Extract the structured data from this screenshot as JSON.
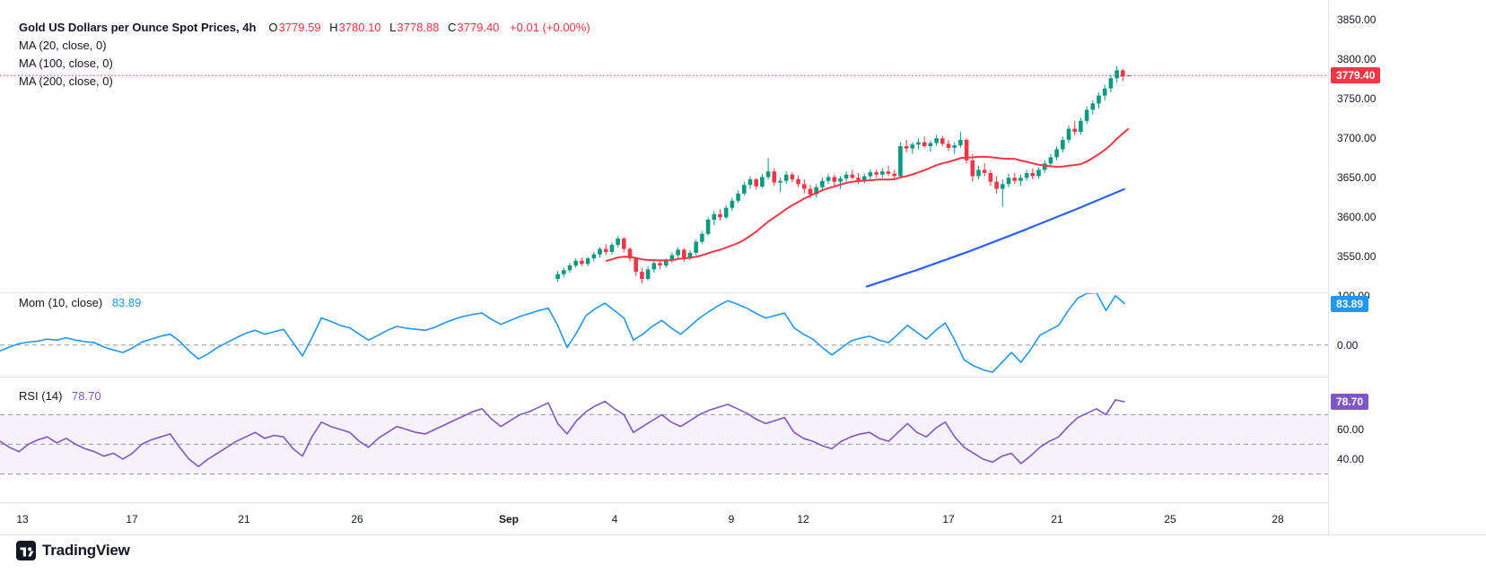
{
  "header": {
    "title": "Gold US Dollars per Ounce Spot Prices, 4h",
    "ohlc": {
      "o_label": "O",
      "o": "3779.59",
      "h_label": "H",
      "h": "3780.10",
      "l_label": "L",
      "l": "3778.88",
      "c_label": "C",
      "c": "3779.40",
      "change": "+0.01 (+0.00%)"
    },
    "ma_labels": [
      "MA (20, close, 0)",
      "MA (100, close, 0)",
      "MA (200, close, 0)"
    ]
  },
  "mom_legend": {
    "label": "Mom (10, close)",
    "value": "83.89"
  },
  "rsi_legend": {
    "label": "RSI (14)",
    "value": "78.70"
  },
  "watermark": "TradingView",
  "colors": {
    "up": "#089981",
    "down": "#F23645",
    "ma20": "#F23645",
    "ma100": "#2962FF",
    "mom": "#2196F3",
    "rsi": "#7E57C2",
    "axis_text": "#131722",
    "grid": "#E0E3EB",
    "dashed": "#9598A1",
    "badge_main": "#F23645",
    "badge_mom": "#2196F3",
    "badge_rsi": "#7E57C2",
    "rsi_band_fill": "rgba(126,87,194,0.08)"
  },
  "time_axis": [
    {
      "t": "13",
      "f": 0.017
    },
    {
      "t": "17",
      "f": 0.099
    },
    {
      "t": "21",
      "f": 0.184
    },
    {
      "t": "26",
      "f": 0.269
    },
    {
      "t": "Sep",
      "f": 0.383,
      "bold": true
    },
    {
      "t": "4",
      "f": 0.463
    },
    {
      "t": "9",
      "f": 0.551
    },
    {
      "t": "12",
      "f": 0.605
    },
    {
      "t": "17",
      "f": 0.714
    },
    {
      "t": "21",
      "f": 0.796
    },
    {
      "t": "25",
      "f": 0.881
    },
    {
      "t": "28",
      "f": 0.962
    }
  ],
  "chart_data": [
    {
      "type": "candlestick",
      "title": "Gold US Dollars per Ounce Spot Prices, 4h",
      "interval": "4h",
      "last": {
        "open": 3779.59,
        "high": 3780.1,
        "low": 3778.88,
        "close": 3779.4,
        "change_abs": 0.01,
        "change_pct": 0.0
      },
      "ylim": [
        3505,
        3875
      ],
      "y_axis": [
        {
          "t": "3850.00",
          "v": 3850
        },
        {
          "t": "3800.00",
          "v": 3800
        },
        {
          "t": "3750.00",
          "v": 3750
        },
        {
          "t": "3700.00",
          "v": 3700
        },
        {
          "t": "3650.00",
          "v": 3650
        },
        {
          "t": "3600.00",
          "v": 3600
        },
        {
          "t": "3550.00",
          "v": 3550
        }
      ],
      "x_span": [
        0.42,
        0.85
      ],
      "price_line": {
        "value": 3779.4,
        "label": "3779.40"
      },
      "candles": [
        [
          3522,
          3532,
          3518,
          3528
        ],
        [
          3528,
          3536,
          3524,
          3533
        ],
        [
          3533,
          3542,
          3530,
          3539
        ],
        [
          3539,
          3548,
          3536,
          3545
        ],
        [
          3545,
          3549,
          3538,
          3541
        ],
        [
          3541,
          3550,
          3538,
          3548
        ],
        [
          3548,
          3556,
          3544,
          3553
        ],
        [
          3553,
          3562,
          3549,
          3560
        ],
        [
          3560,
          3566,
          3552,
          3556
        ],
        [
          3556,
          3568,
          3553,
          3565
        ],
        [
          3565,
          3576,
          3562,
          3573
        ],
        [
          3573,
          3575,
          3556,
          3560
        ],
        [
          3560,
          3562,
          3544,
          3548
        ],
        [
          3548,
          3550,
          3526,
          3531
        ],
        [
          3531,
          3536,
          3516,
          3522
        ],
        [
          3522,
          3538,
          3520,
          3534
        ],
        [
          3534,
          3545,
          3530,
          3542
        ],
        [
          3542,
          3546,
          3534,
          3539
        ],
        [
          3539,
          3548,
          3536,
          3545
        ],
        [
          3545,
          3555,
          3542,
          3552
        ],
        [
          3552,
          3562,
          3548,
          3559
        ],
        [
          3559,
          3561,
          3544,
          3549
        ],
        [
          3549,
          3558,
          3546,
          3555
        ],
        [
          3555,
          3572,
          3552,
          3569
        ],
        [
          3569,
          3582,
          3566,
          3579
        ],
        [
          3579,
          3600,
          3577,
          3597
        ],
        [
          3597,
          3608,
          3590,
          3604
        ],
        [
          3604,
          3610,
          3596,
          3600
        ],
        [
          3600,
          3615,
          3598,
          3612
        ],
        [
          3612,
          3625,
          3608,
          3621
        ],
        [
          3621,
          3634,
          3618,
          3630
        ],
        [
          3630,
          3645,
          3627,
          3641
        ],
        [
          3641,
          3652,
          3636,
          3648
        ],
        [
          3648,
          3650,
          3635,
          3639
        ],
        [
          3639,
          3655,
          3637,
          3651
        ],
        [
          3651,
          3675,
          3648,
          3658
        ],
        [
          3658,
          3662,
          3640,
          3644
        ],
        [
          3644,
          3650,
          3632,
          3646
        ],
        [
          3646,
          3658,
          3642,
          3654
        ],
        [
          3654,
          3657,
          3644,
          3648
        ],
        [
          3648,
          3653,
          3638,
          3642
        ],
        [
          3642,
          3648,
          3630,
          3636
        ],
        [
          3636,
          3641,
          3624,
          3629
        ],
        [
          3629,
          3642,
          3625,
          3638
        ],
        [
          3638,
          3650,
          3634,
          3646
        ],
        [
          3646,
          3655,
          3642,
          3651
        ],
        [
          3651,
          3654,
          3640,
          3645
        ],
        [
          3645,
          3652,
          3636,
          3649
        ],
        [
          3649,
          3658,
          3645,
          3654
        ],
        [
          3654,
          3660,
          3648,
          3650
        ],
        [
          3650,
          3656,
          3642,
          3647
        ],
        [
          3647,
          3655,
          3643,
          3652
        ],
        [
          3652,
          3661,
          3648,
          3657
        ],
        [
          3657,
          3660,
          3650,
          3654
        ],
        [
          3654,
          3662,
          3650,
          3658
        ],
        [
          3658,
          3665,
          3652,
          3655
        ],
        [
          3655,
          3660,
          3648,
          3652
        ],
        [
          3652,
          3695,
          3650,
          3690
        ],
        [
          3690,
          3698,
          3682,
          3687
        ],
        [
          3687,
          3695,
          3680,
          3692
        ],
        [
          3692,
          3700,
          3686,
          3695
        ],
        [
          3695,
          3702,
          3688,
          3690
        ],
        [
          3690,
          3697,
          3683,
          3694
        ],
        [
          3694,
          3704,
          3690,
          3700
        ],
        [
          3700,
          3703,
          3690,
          3693
        ],
        [
          3693,
          3698,
          3684,
          3688
        ],
        [
          3688,
          3695,
          3680,
          3691
        ],
        [
          3691,
          3708,
          3688,
          3698
        ],
        [
          3698,
          3700,
          3668,
          3672
        ],
        [
          3672,
          3680,
          3645,
          3652
        ],
        [
          3652,
          3665,
          3648,
          3660
        ],
        [
          3660,
          3668,
          3652,
          3656
        ],
        [
          3656,
          3660,
          3640,
          3645
        ],
        [
          3645,
          3652,
          3630,
          3636
        ],
        [
          3636,
          3648,
          3613,
          3642
        ],
        [
          3642,
          3655,
          3638,
          3650
        ],
        [
          3650,
          3656,
          3642,
          3646
        ],
        [
          3646,
          3654,
          3640,
          3650
        ],
        [
          3650,
          3660,
          3646,
          3656
        ],
        [
          3656,
          3662,
          3648,
          3652
        ],
        [
          3652,
          3663,
          3649,
          3660
        ],
        [
          3660,
          3672,
          3656,
          3668
        ],
        [
          3668,
          3680,
          3664,
          3676
        ],
        [
          3676,
          3690,
          3672,
          3686
        ],
        [
          3686,
          3702,
          3682,
          3698
        ],
        [
          3698,
          3716,
          3694,
          3712
        ],
        [
          3712,
          3722,
          3704,
          3708
        ],
        [
          3708,
          3726,
          3705,
          3722
        ],
        [
          3722,
          3740,
          3718,
          3736
        ],
        [
          3736,
          3748,
          3730,
          3744
        ],
        [
          3744,
          3758,
          3738,
          3754
        ],
        [
          3754,
          3768,
          3748,
          3763
        ],
        [
          3763,
          3780,
          3758,
          3776
        ],
        [
          3776,
          3791,
          3770,
          3786
        ],
        [
          3786,
          3788,
          3772,
          3778
        ],
        [
          3779.59,
          3780.1,
          3778.88,
          3779.4
        ]
      ],
      "overlays": [
        {
          "name": "MA (20, close, 0)",
          "color": "#F23645",
          "compute": "sma20"
        },
        {
          "name": "MA (100, close, 0)",
          "color": "#2962FF",
          "points": [
            [
              0.652,
              3512
            ],
            [
              0.69,
              3533
            ],
            [
              0.73,
              3557
            ],
            [
              0.77,
              3583
            ],
            [
              0.81,
              3610
            ],
            [
              0.847,
              3636
            ]
          ]
        },
        {
          "name": "MA (200, close, 0)",
          "visible": false
        }
      ]
    },
    {
      "type": "line",
      "name": "Mom (10, close)",
      "value": 83.89,
      "ylim": [
        -64,
        107
      ],
      "y_axis": [
        {
          "t": "100.00",
          "v": 100
        },
        {
          "t": "0.00",
          "v": 0
        }
      ],
      "zero_line": 0,
      "x_span": [
        0,
        0.847
      ],
      "values": [
        -12,
        -4,
        3,
        6,
        8,
        12,
        10,
        15,
        10,
        7,
        5,
        -4,
        -10,
        -15,
        -6,
        6,
        12,
        18,
        22,
        8,
        -12,
        -28,
        -18,
        -5,
        5,
        15,
        24,
        30,
        22,
        27,
        32,
        5,
        -22,
        15,
        55,
        48,
        40,
        35,
        22,
        10,
        20,
        30,
        38,
        34,
        32,
        30,
        36,
        45,
        52,
        58,
        62,
        65,
        52,
        42,
        50,
        58,
        64,
        70,
        75,
        40,
        -5,
        25,
        60,
        74,
        85,
        70,
        55,
        10,
        22,
        38,
        50,
        35,
        22,
        38,
        55,
        68,
        80,
        90,
        83,
        75,
        64,
        55,
        60,
        65,
        35,
        22,
        12,
        -5,
        -20,
        -6,
        8,
        14,
        18,
        10,
        5,
        22,
        40,
        26,
        12,
        30,
        45,
        10,
        -30,
        -42,
        -50,
        -55,
        -35,
        -15,
        -35,
        -10,
        20,
        30,
        40,
        70,
        95,
        105,
        106,
        70,
        100,
        83.89
      ]
    },
    {
      "type": "line",
      "name": "RSI (14)",
      "value": 78.7,
      "ylim": [
        10.9,
        95.7
      ],
      "y_axis": [
        {
          "t": "60.00",
          "v": 60
        },
        {
          "t": "40.00",
          "v": 40
        }
      ],
      "bands": {
        "upper": 70,
        "middle": 50,
        "lower": 30
      },
      "x_span": [
        0,
        0.847
      ],
      "values": [
        52,
        48,
        45,
        50,
        53,
        55,
        51,
        54,
        50,
        47,
        45,
        42,
        44,
        40,
        44,
        50,
        53,
        55,
        57,
        48,
        40,
        35,
        40,
        44,
        48,
        52,
        55,
        58,
        54,
        56,
        55,
        47,
        42,
        55,
        65,
        62,
        60,
        58,
        52,
        48,
        54,
        58,
        62,
        60,
        58,
        57,
        60,
        63,
        66,
        69,
        72,
        74,
        67,
        62,
        66,
        70,
        72,
        75,
        78,
        64,
        57,
        66,
        72,
        76,
        79,
        74,
        70,
        58,
        62,
        66,
        70,
        65,
        62,
        66,
        70,
        73,
        75,
        77,
        74,
        71,
        67,
        64,
        66,
        68,
        58,
        54,
        52,
        49,
        47,
        52,
        55,
        57,
        58,
        54,
        52,
        58,
        64,
        58,
        55,
        61,
        65,
        55,
        48,
        44,
        40,
        38,
        42,
        44,
        37,
        42,
        48,
        52,
        55,
        62,
        68,
        71,
        74,
        70,
        80,
        78.7
      ]
    }
  ]
}
